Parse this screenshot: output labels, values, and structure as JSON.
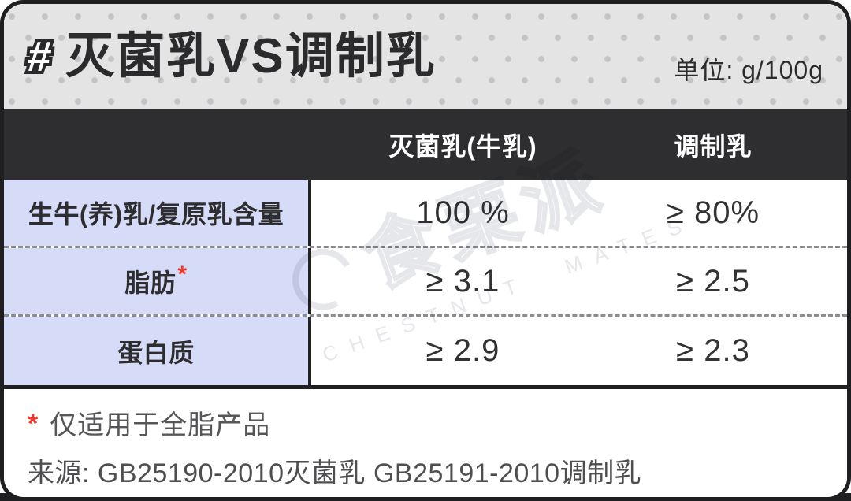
{
  "header": {
    "hash": "#",
    "title": "灭菌乳VS调制乳",
    "unit_label": "单位: g/100g"
  },
  "columns": {
    "col1": "灭菌乳(牛乳)",
    "col2": "调制乳"
  },
  "table": {
    "rows": [
      {
        "label": "生牛(养)乳/复原乳含量",
        "mark": "",
        "v1": "100 %",
        "v2": "≥ 80%"
      },
      {
        "label": "脂肪",
        "mark": "*",
        "v1": "≥ 3.1",
        "v2": "≥ 2.5"
      },
      {
        "label": "蛋白质",
        "mark": "",
        "v1": "≥ 2.9",
        "v2": "≥ 2.3"
      }
    ]
  },
  "footnote": {
    "marker": "*",
    "text": "仅适用于全脂产品"
  },
  "source_line": "来源: GB25190-2010灭菌乳 GB25191-2010调制乳",
  "watermark": {
    "cn": "食栗派",
    "en": "CHESTNUT MATES"
  },
  "colors": {
    "accent_red": "#ee3a2c",
    "header_bg": "#e4e4e4",
    "header_dot": "#c4c4c7",
    "dark_row": "#2e2e30",
    "label_lavender": "#d6dcf7",
    "border_black": "#1f1f21",
    "dashed_divider": "#8d8d91"
  },
  "chart_data": {
    "type": "table",
    "title": "灭菌乳VS调制乳",
    "unit": "g/100g",
    "columns": [
      "",
      "灭菌乳(牛乳)",
      "调制乳"
    ],
    "rows": [
      [
        "生牛(养)乳/复原乳含量",
        "100 %",
        "≥ 80%"
      ],
      [
        "脂肪*",
        "≥ 3.1",
        "≥ 2.5"
      ],
      [
        "蛋白质",
        "≥ 2.9",
        "≥ 2.3"
      ]
    ],
    "footnotes": [
      "* 仅适用于全脂产品",
      "来源: GB25190-2010灭菌乳 GB25191-2010调制乳"
    ]
  }
}
